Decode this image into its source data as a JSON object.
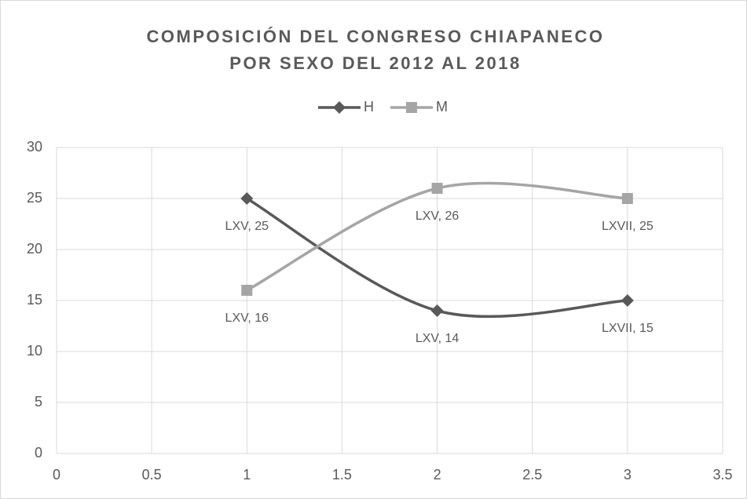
{
  "chart_data": {
    "type": "scatter",
    "title": [
      "COMPOSICIÓN DEL CONGRESO CHIAPANECO",
      "POR SEXO DEL 2012 AL 2018"
    ],
    "x": [
      1,
      2,
      3
    ],
    "series": [
      {
        "name": "H",
        "color": "#595959",
        "marker": "diamond",
        "values": [
          25,
          14,
          15
        ],
        "value_labels": [
          "LXV, 25",
          "LXV, 14",
          "LXVII, 15"
        ]
      },
      {
        "name": "M",
        "color": "#a5a5a5",
        "marker": "square",
        "values": [
          16,
          26,
          25
        ],
        "value_labels": [
          "LXV, 16",
          "LXV, 26",
          "LXVII, 25"
        ]
      }
    ],
    "xlim": [
      0,
      3.5
    ],
    "xticks": [
      0,
      0.5,
      1,
      1.5,
      2,
      2.5,
      3,
      3.5
    ],
    "ylim": [
      0,
      30
    ],
    "yticks": [
      0,
      5,
      10,
      15,
      20,
      25,
      30
    ],
    "grid": true,
    "smooth": true,
    "legend": "top"
  }
}
